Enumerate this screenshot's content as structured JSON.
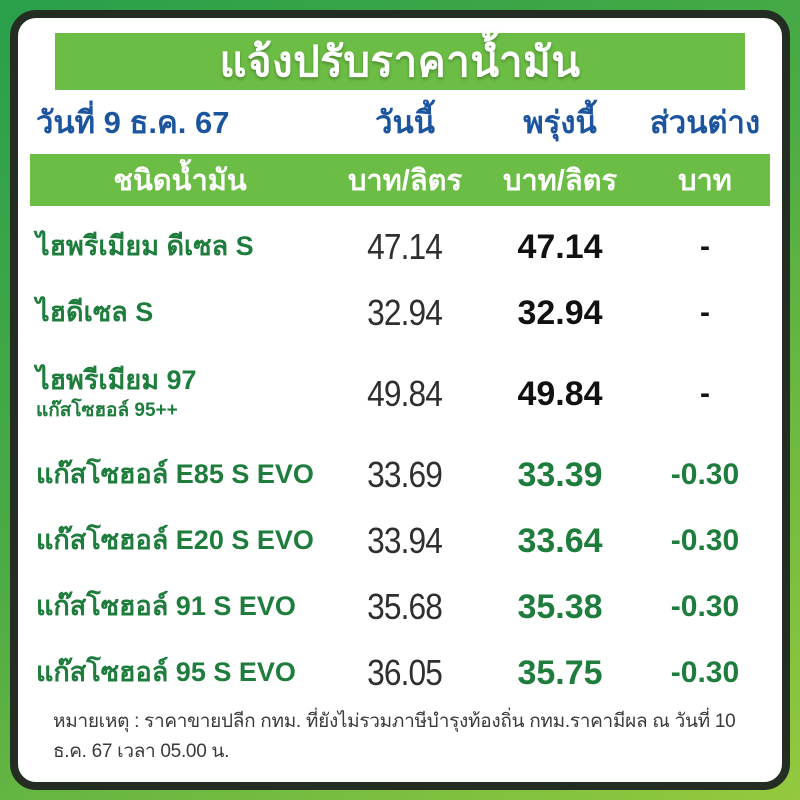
{
  "title": "แจ้งปรับราคาน้ำมัน",
  "header": {
    "date_label": "วันที่ 9 ธ.ค. 67",
    "col_today": "วันนี้",
    "col_tomorrow": "พรุ่งนี้",
    "col_diff": "ส่วนต่าง"
  },
  "subheader": {
    "fuel_type_label": "ชนิดน้ำมัน",
    "unit_today": "บาท/ลิตร",
    "unit_tomorrow": "บาท/ลิตร",
    "unit_diff": "บาท"
  },
  "rows": [
    {
      "name": "ไฮพรีเมียม ดีเซล S",
      "sub": "",
      "today": "47.14",
      "tomorrow": "47.14",
      "diff": "-",
      "changed": false
    },
    {
      "name": "ไฮดีเซล S",
      "sub": "",
      "today": "32.94",
      "tomorrow": "32.94",
      "diff": "-",
      "changed": false
    },
    {
      "name": "ไฮพรีเมียม 97",
      "sub": "แก๊สโซฮอล์ 95++",
      "today": "49.84",
      "tomorrow": "49.84",
      "diff": "-",
      "changed": false
    },
    {
      "name": "แก๊สโซฮอล์ E85 S EVO",
      "sub": "",
      "today": "33.69",
      "tomorrow": "33.39",
      "diff": "-0.30",
      "changed": true
    },
    {
      "name": "แก๊สโซฮอล์ E20 S EVO",
      "sub": "",
      "today": "33.94",
      "tomorrow": "33.64",
      "diff": "-0.30",
      "changed": true
    },
    {
      "name": "แก๊สโซฮอล์ 91 S EVO",
      "sub": "",
      "today": "35.68",
      "tomorrow": "35.38",
      "diff": "-0.30",
      "changed": true
    },
    {
      "name": "แก๊สโซฮอล์ 95 S EVO",
      "sub": "",
      "today": "36.05",
      "tomorrow": "35.75",
      "diff": "-0.30",
      "changed": true
    }
  ],
  "footer": {
    "note": "หมายเหตุ :  ราคาขายปลีก กทม. ที่ยังไม่รวมภาษีบำรุงท้องถิ่น กทม.ราคามีผล ณ วันที่ 10 ธ.ค. 67 เวลา 05.00 น."
  },
  "colors": {
    "frame_green_dark": "#29a04a",
    "frame_green_light": "#94c93d",
    "border_dark": "#232d21",
    "banner_green": "#6cbd45",
    "header_blue": "#1c559e",
    "fuel_green": "#1e7d3c",
    "price_black": "#111111"
  }
}
